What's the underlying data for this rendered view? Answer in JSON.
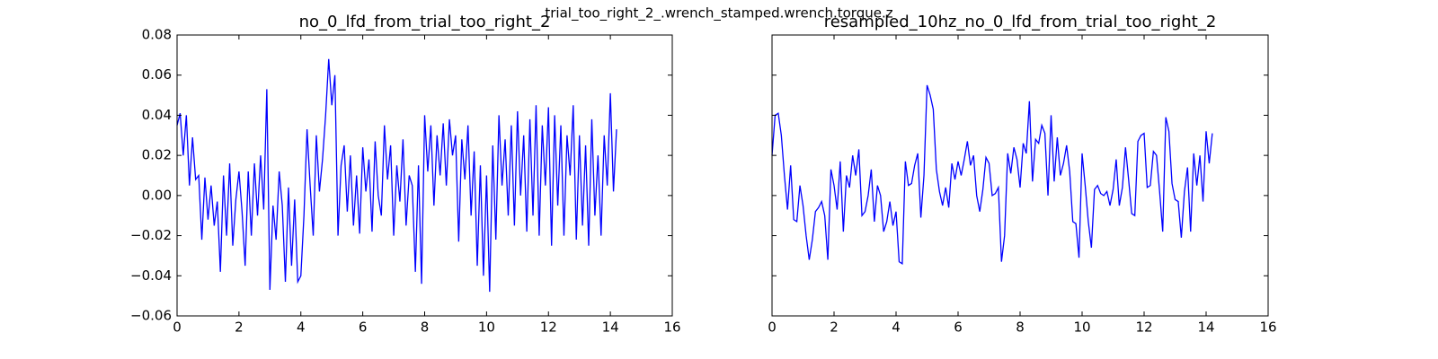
{
  "figure_title": "trial_too_right_2_.wrench_stamped.wrench.torque.z",
  "chart_data": [
    {
      "type": "line",
      "title": "no_0_lfd_from_trial_too_right_2",
      "x": [
        0,
        0.1,
        0.2,
        0.3,
        0.4,
        0.5,
        0.6,
        0.7,
        0.8,
        0.9,
        1,
        1.1,
        1.2,
        1.3,
        1.4,
        1.5,
        1.6,
        1.7,
        1.8,
        1.9,
        2,
        2.1,
        2.2,
        2.3,
        2.4,
        2.5,
        2.6,
        2.7,
        2.8,
        2.9,
        3,
        3.1,
        3.2,
        3.3,
        3.4,
        3.5,
        3.6,
        3.7,
        3.8,
        3.9,
        4,
        4.1,
        4.2,
        4.3,
        4.4,
        4.5,
        4.6,
        4.7,
        4.8,
        4.9,
        5,
        5.1,
        5.2,
        5.3,
        5.4,
        5.5,
        5.6,
        5.7,
        5.8,
        5.9,
        6,
        6.1,
        6.2,
        6.3,
        6.4,
        6.5,
        6.6,
        6.7,
        6.8,
        6.9,
        7,
        7.1,
        7.2,
        7.3,
        7.4,
        7.5,
        7.6,
        7.7,
        7.8,
        7.9,
        8,
        8.1,
        8.2,
        8.3,
        8.4,
        8.5,
        8.6,
        8.7,
        8.8,
        8.9,
        9,
        9.1,
        9.2,
        9.3,
        9.4,
        9.5,
        9.6,
        9.7,
        9.8,
        9.9,
        10,
        10.1,
        10.2,
        10.3,
        10.4,
        10.5,
        10.6,
        10.7,
        10.8,
        10.9,
        11,
        11.1,
        11.2,
        11.3,
        11.4,
        11.5,
        11.6,
        11.7,
        11.8,
        11.9,
        12,
        12.1,
        12.2,
        12.3,
        12.4,
        12.5,
        12.6,
        12.7,
        12.8,
        12.9,
        13,
        13.1,
        13.2,
        13.3,
        13.4,
        13.5,
        13.6,
        13.7,
        13.8,
        13.9,
        14,
        14.1,
        14.2
      ],
      "series": [
        {
          "color": "#0000ff",
          "values": [
            0.035,
            0.041,
            0.02,
            0.04,
            0.005,
            0.029,
            0.008,
            0.01,
            -0.022,
            0.009,
            -0.012,
            0.005,
            -0.015,
            -0.003,
            -0.038,
            0.01,
            -0.02,
            0.016,
            -0.025,
            -0.002,
            0.012,
            -0.008,
            -0.035,
            0.012,
            -0.02,
            0.016,
            -0.01,
            0.02,
            -0.007,
            0.053,
            -0.047,
            -0.005,
            -0.022,
            0.012,
            -0.005,
            -0.043,
            0.004,
            -0.035,
            -0.002,
            -0.043,
            -0.04,
            -0.01,
            0.033,
            0.005,
            -0.02,
            0.03,
            0.002,
            0.018,
            0.04,
            0.068,
            0.045,
            0.06,
            -0.02,
            0.015,
            0.025,
            -0.008,
            0.02,
            -0.015,
            0.01,
            -0.019,
            0.024,
            0.002,
            0.018,
            -0.018,
            0.027,
            0.0,
            -0.01,
            0.035,
            0.008,
            0.025,
            -0.02,
            0.015,
            -0.003,
            0.028,
            -0.015,
            0.01,
            0.005,
            -0.038,
            0.015,
            -0.044,
            0.04,
            0.012,
            0.035,
            -0.005,
            0.03,
            0.01,
            0.036,
            0.005,
            0.038,
            0.02,
            0.03,
            -0.023,
            0.028,
            0.008,
            0.035,
            -0.01,
            0.022,
            -0.035,
            0.015,
            -0.04,
            0.01,
            -0.048,
            0.025,
            -0.022,
            0.04,
            0.005,
            0.028,
            -0.01,
            0.035,
            -0.015,
            0.042,
            0.0,
            0.03,
            -0.018,
            0.038,
            -0.01,
            0.045,
            -0.02,
            0.035,
            0.005,
            0.044,
            -0.025,
            0.04,
            -0.005,
            0.035,
            -0.02,
            0.03,
            0.01,
            0.045,
            -0.022,
            0.03,
            -0.015,
            0.025,
            -0.025,
            0.038,
            -0.01,
            0.02,
            -0.02,
            0.03,
            0.005,
            0.051,
            0.002,
            0.033
          ]
        }
      ],
      "xlim": [
        0,
        16
      ],
      "xticks": [
        0,
        2,
        4,
        6,
        8,
        10,
        12,
        14,
        16
      ],
      "ylim": [
        -0.06,
        0.08
      ],
      "yticks": [
        {
          "value": -0.06,
          "label": "−0.06"
        },
        {
          "value": -0.04,
          "label": "−0.04"
        },
        {
          "value": -0.02,
          "label": "−0.02"
        },
        {
          "value": 0,
          "label": "0.00"
        },
        {
          "value": 0.02,
          "label": "0.02"
        },
        {
          "value": 0.04,
          "label": "0.04"
        },
        {
          "value": 0.06,
          "label": "0.06"
        },
        {
          "value": 0.08,
          "label": "0.08"
        }
      ],
      "ytick_labels": true
    },
    {
      "type": "line",
      "title": "resampled_10hz_no_0_lfd_from_trial_too_right_2",
      "x": [
        0,
        0.1,
        0.2,
        0.3,
        0.4,
        0.5,
        0.6,
        0.7,
        0.8,
        0.9,
        1,
        1.1,
        1.2,
        1.3,
        1.4,
        1.5,
        1.6,
        1.7,
        1.8,
        1.9,
        2,
        2.1,
        2.2,
        2.3,
        2.4,
        2.5,
        2.6,
        2.7,
        2.8,
        2.9,
        3,
        3.1,
        3.2,
        3.3,
        3.4,
        3.5,
        3.6,
        3.7,
        3.8,
        3.9,
        4,
        4.1,
        4.2,
        4.3,
        4.4,
        4.5,
        4.6,
        4.7,
        4.8,
        4.9,
        5,
        5.1,
        5.2,
        5.3,
        5.4,
        5.5,
        5.6,
        5.7,
        5.8,
        5.9,
        6,
        6.1,
        6.2,
        6.3,
        6.4,
        6.5,
        6.6,
        6.7,
        6.8,
        6.9,
        7,
        7.1,
        7.2,
        7.3,
        7.4,
        7.5,
        7.6,
        7.7,
        7.8,
        7.9,
        8,
        8.1,
        8.2,
        8.3,
        8.4,
        8.5,
        8.6,
        8.7,
        8.8,
        8.9,
        9,
        9.1,
        9.2,
        9.3,
        9.4,
        9.5,
        9.6,
        9.7,
        9.8,
        9.9,
        10,
        10.1,
        10.2,
        10.3,
        10.4,
        10.5,
        10.6,
        10.7,
        10.8,
        10.9,
        11,
        11.1,
        11.2,
        11.3,
        11.4,
        11.5,
        11.6,
        11.7,
        11.8,
        11.9,
        12,
        12.1,
        12.2,
        12.3,
        12.4,
        12.5,
        12.6,
        12.7,
        12.8,
        12.9,
        13,
        13.1,
        13.2,
        13.3,
        13.4,
        13.5,
        13.6,
        13.7,
        13.8,
        13.9,
        14,
        14.1,
        14.2
      ],
      "series": [
        {
          "color": "#0000ff",
          "values": [
            0.02,
            0.04,
            0.041,
            0.03,
            0.01,
            -0.007,
            0.015,
            -0.012,
            -0.013,
            0.005,
            -0.005,
            -0.02,
            -0.032,
            -0.022,
            -0.008,
            -0.006,
            -0.003,
            -0.01,
            -0.032,
            0.013,
            0.005,
            -0.007,
            0.017,
            -0.018,
            0.01,
            0.004,
            0.02,
            0.01,
            0.023,
            -0.01,
            -0.008,
            0.0,
            0.013,
            -0.013,
            0.005,
            0.0,
            -0.018,
            -0.013,
            -0.003,
            -0.015,
            -0.008,
            -0.033,
            -0.034,
            0.017,
            0.005,
            0.006,
            0.015,
            0.021,
            -0.011,
            0.01,
            0.055,
            0.05,
            0.043,
            0.013,
            0.002,
            -0.005,
            0.004,
            -0.006,
            0.016,
            0.008,
            0.017,
            0.01,
            0.018,
            0.027,
            0.015,
            0.02,
            0.0,
            -0.008,
            0.003,
            0.019,
            0.016,
            0.0,
            0.001,
            0.004,
            -0.033,
            -0.02,
            0.021,
            0.011,
            0.024,
            0.018,
            0.004,
            0.026,
            0.021,
            0.047,
            0.007,
            0.028,
            0.026,
            0.035,
            0.031,
            0.0,
            0.04,
            0.007,
            0.029,
            0.01,
            0.016,
            0.025,
            0.012,
            -0.013,
            -0.014,
            -0.031,
            0.021,
            0.005,
            -0.013,
            -0.026,
            0.003,
            0.005,
            0.001,
            0.0,
            0.002,
            -0.005,
            0.003,
            0.018,
            -0.005,
            0.004,
            0.024,
            0.008,
            -0.009,
            -0.01,
            0.027,
            0.03,
            0.031,
            0.004,
            0.005,
            0.022,
            0.02,
            0.002,
            -0.018,
            0.039,
            0.032,
            0.006,
            -0.002,
            -0.003,
            -0.021,
            0.002,
            0.014,
            -0.018,
            0.021,
            0.005,
            0.02,
            -0.003,
            0.032,
            0.016,
            0.031
          ]
        }
      ],
      "xlim": [
        0,
        16
      ],
      "xticks": [
        0,
        2,
        4,
        6,
        8,
        10,
        12,
        14,
        16
      ],
      "ylim": [
        -0.06,
        0.08
      ],
      "yticks": [
        -0.06,
        -0.04,
        -0.02,
        0,
        0.02,
        0.04,
        0.06,
        0.08
      ],
      "ytick_labels": false
    }
  ]
}
